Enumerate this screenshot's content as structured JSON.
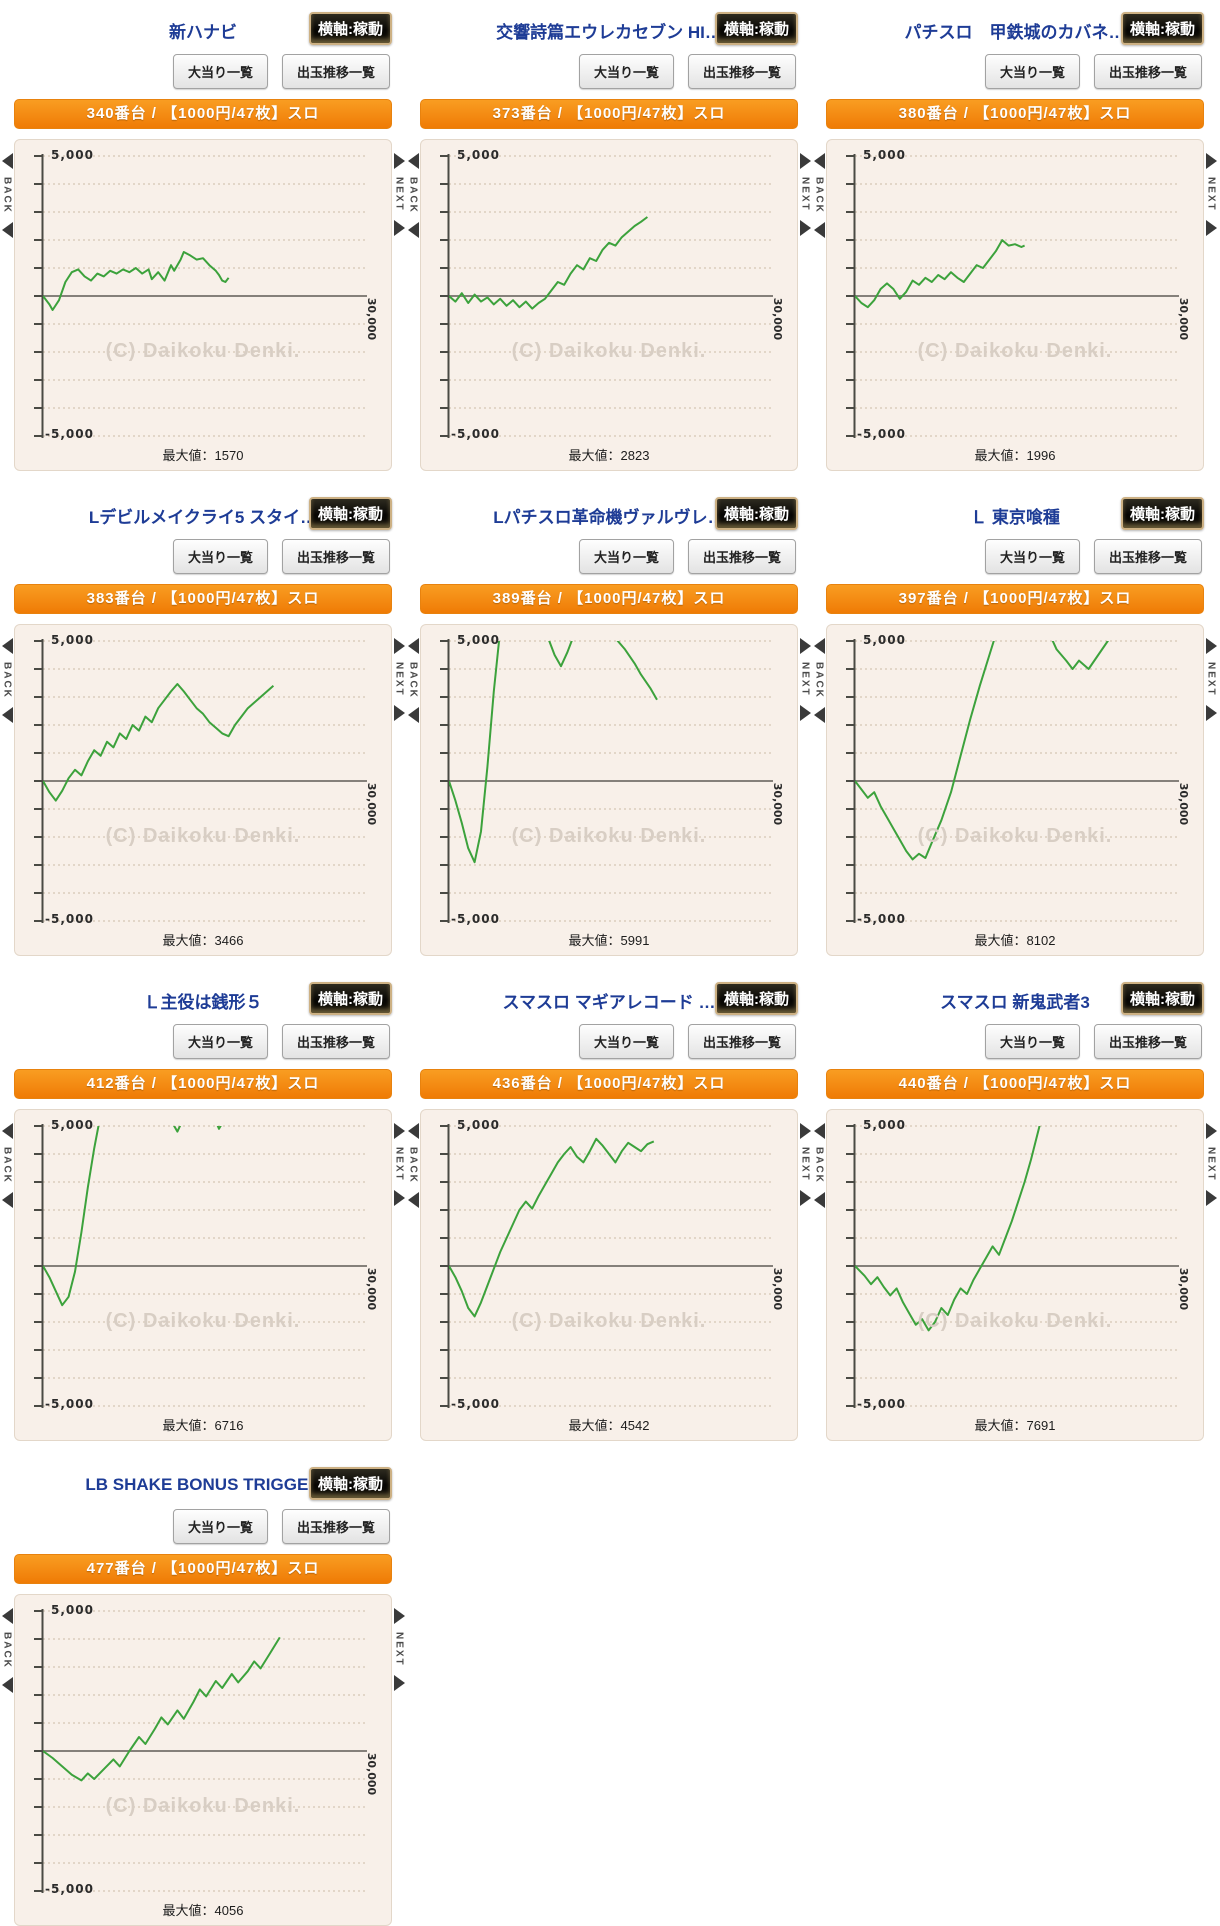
{
  "common": {
    "haxis_mode_label": "横軸:稼動",
    "jackpot_list_label": "大当り一覧",
    "payout_list_label": "出玉推移一覧",
    "back_label": "BACK",
    "next_label": "NEXT",
    "watermark": "(C) Daikoku Denki.",
    "max_value_prefix": "最大値：",
    "y_axis_top_label": "5,000",
    "y_axis_bottom_label": "-5,000",
    "x_axis_end_label": "30,000"
  },
  "colors": {
    "title_blue": "#1e3c96",
    "orange_bar": "#f68a10",
    "card_background": "#f8f0e9",
    "grid_line": "#cdbba8",
    "zero_line": "#85807a",
    "axis_line": "#4a4a44",
    "series_green": "#3ca23c",
    "watermark_gray": "#d8cec4",
    "haxis_border_gold": "#cdb184"
  },
  "chart_data": [
    {
      "type": "line",
      "title": "新ハナビ",
      "machine_label": "340番台 / 【1000円/47枚】スロ",
      "max_value": "1570",
      "ylim": [
        -5000,
        5000
      ],
      "grid_step": 1000,
      "x_end": 30000,
      "points": [
        [
          0,
          0
        ],
        [
          0.02,
          -300
        ],
        [
          0.03,
          -500
        ],
        [
          0.05,
          -150
        ],
        [
          0.07,
          500
        ],
        [
          0.09,
          850
        ],
        [
          0.11,
          950
        ],
        [
          0.13,
          700
        ],
        [
          0.15,
          550
        ],
        [
          0.17,
          800
        ],
        [
          0.19,
          700
        ],
        [
          0.21,
          900
        ],
        [
          0.23,
          800
        ],
        [
          0.25,
          950
        ],
        [
          0.27,
          850
        ],
        [
          0.29,
          1000
        ],
        [
          0.31,
          800
        ],
        [
          0.33,
          950
        ],
        [
          0.34,
          600
        ],
        [
          0.36,
          850
        ],
        [
          0.38,
          550
        ],
        [
          0.4,
          1100
        ],
        [
          0.41,
          900
        ],
        [
          0.43,
          1300
        ],
        [
          0.44,
          1570
        ],
        [
          0.46,
          1450
        ],
        [
          0.48,
          1300
        ],
        [
          0.5,
          1350
        ],
        [
          0.52,
          1100
        ],
        [
          0.54,
          900
        ],
        [
          0.55,
          750
        ],
        [
          0.56,
          550
        ],
        [
          0.57,
          500
        ],
        [
          0.58,
          650
        ]
      ]
    },
    {
      "type": "line",
      "title": "交響詩篇エウレカセブン HI…",
      "machine_label": "373番台 / 【1000円/47枚】スロ",
      "max_value": "2823",
      "ylim": [
        -5000,
        5000
      ],
      "grid_step": 1000,
      "x_end": 30000,
      "points": [
        [
          0,
          0
        ],
        [
          0.02,
          -200
        ],
        [
          0.04,
          100
        ],
        [
          0.06,
          -250
        ],
        [
          0.08,
          50
        ],
        [
          0.1,
          -200
        ],
        [
          0.12,
          -50
        ],
        [
          0.14,
          -300
        ],
        [
          0.16,
          -100
        ],
        [
          0.18,
          -350
        ],
        [
          0.2,
          -150
        ],
        [
          0.22,
          -400
        ],
        [
          0.24,
          -200
        ],
        [
          0.26,
          -450
        ],
        [
          0.28,
          -250
        ],
        [
          0.3,
          -100
        ],
        [
          0.32,
          200
        ],
        [
          0.34,
          500
        ],
        [
          0.36,
          400
        ],
        [
          0.38,
          800
        ],
        [
          0.4,
          1100
        ],
        [
          0.42,
          950
        ],
        [
          0.44,
          1350
        ],
        [
          0.46,
          1250
        ],
        [
          0.48,
          1650
        ],
        [
          0.5,
          1900
        ],
        [
          0.52,
          1800
        ],
        [
          0.54,
          2100
        ],
        [
          0.56,
          2300
        ],
        [
          0.58,
          2500
        ],
        [
          0.6,
          2650
        ],
        [
          0.62,
          2823
        ]
      ]
    },
    {
      "type": "line",
      "title": "パチスロ　甲鉄城のカバネ…",
      "machine_label": "380番台 / 【1000円/47枚】スロ",
      "max_value": "1996",
      "ylim": [
        -5000,
        5000
      ],
      "grid_step": 1000,
      "x_end": 30000,
      "points": [
        [
          0,
          0
        ],
        [
          0.02,
          -250
        ],
        [
          0.04,
          -400
        ],
        [
          0.06,
          -150
        ],
        [
          0.08,
          250
        ],
        [
          0.1,
          450
        ],
        [
          0.12,
          250
        ],
        [
          0.14,
          -100
        ],
        [
          0.16,
          150
        ],
        [
          0.18,
          550
        ],
        [
          0.2,
          400
        ],
        [
          0.22,
          650
        ],
        [
          0.24,
          500
        ],
        [
          0.26,
          750
        ],
        [
          0.28,
          600
        ],
        [
          0.3,
          850
        ],
        [
          0.32,
          650
        ],
        [
          0.34,
          500
        ],
        [
          0.36,
          800
        ],
        [
          0.38,
          1100
        ],
        [
          0.4,
          1000
        ],
        [
          0.42,
          1300
        ],
        [
          0.44,
          1600
        ],
        [
          0.46,
          1996
        ],
        [
          0.48,
          1800
        ],
        [
          0.5,
          1850
        ],
        [
          0.52,
          1750
        ],
        [
          0.53,
          1800
        ]
      ]
    },
    {
      "type": "line",
      "title": "Lデビルメイクライ5 スタイ…",
      "machine_label": "383番台 / 【1000円/47枚】スロ",
      "max_value": "3466",
      "ylim": [
        -5000,
        5000
      ],
      "grid_step": 1000,
      "x_end": 30000,
      "points": [
        [
          0,
          0
        ],
        [
          0.02,
          -400
        ],
        [
          0.04,
          -700
        ],
        [
          0.06,
          -350
        ],
        [
          0.08,
          100
        ],
        [
          0.1,
          400
        ],
        [
          0.12,
          200
        ],
        [
          0.14,
          700
        ],
        [
          0.16,
          1100
        ],
        [
          0.18,
          900
        ],
        [
          0.2,
          1400
        ],
        [
          0.22,
          1200
        ],
        [
          0.24,
          1700
        ],
        [
          0.26,
          1500
        ],
        [
          0.28,
          2000
        ],
        [
          0.3,
          1800
        ],
        [
          0.32,
          2300
        ],
        [
          0.34,
          2100
        ],
        [
          0.36,
          2600
        ],
        [
          0.38,
          2900
        ],
        [
          0.4,
          3200
        ],
        [
          0.42,
          3466
        ],
        [
          0.44,
          3200
        ],
        [
          0.46,
          2900
        ],
        [
          0.48,
          2600
        ],
        [
          0.5,
          2400
        ],
        [
          0.52,
          2100
        ],
        [
          0.54,
          1900
        ],
        [
          0.56,
          1700
        ],
        [
          0.58,
          1600
        ],
        [
          0.6,
          2000
        ],
        [
          0.62,
          2300
        ],
        [
          0.64,
          2600
        ],
        [
          0.66,
          2800
        ],
        [
          0.68,
          3000
        ],
        [
          0.7,
          3200
        ],
        [
          0.72,
          3400
        ]
      ]
    },
    {
      "type": "line",
      "title": "Lパチスロ革命機ヴァルヴレ…",
      "machine_label": "389番台 / 【1000円/47枚】スロ",
      "max_value": "5991",
      "ylim": [
        -5000,
        5000
      ],
      "grid_step": 1000,
      "x_end": 30000,
      "points": [
        [
          0,
          0
        ],
        [
          0.02,
          -700
        ],
        [
          0.04,
          -1500
        ],
        [
          0.06,
          -2400
        ],
        [
          0.08,
          -2900
        ],
        [
          0.1,
          -1800
        ],
        [
          0.12,
          500
        ],
        [
          0.14,
          3200
        ],
        [
          0.16,
          5400
        ],
        [
          0.2,
          5991
        ],
        [
          0.28,
          5600
        ],
        [
          0.31,
          5100
        ],
        [
          0.33,
          4500
        ],
        [
          0.35,
          4100
        ],
        [
          0.37,
          4600
        ],
        [
          0.39,
          5200
        ],
        [
          0.48,
          5500
        ],
        [
          0.52,
          5100
        ],
        [
          0.55,
          4700
        ],
        [
          0.58,
          4200
        ],
        [
          0.6,
          3800
        ],
        [
          0.63,
          3300
        ],
        [
          0.65,
          2900
        ]
      ]
    },
    {
      "type": "line",
      "title": "Ｌ 東京喰種",
      "machine_label": "397番台 / 【1000円/47枚】スロ",
      "max_value": "8102",
      "ylim": [
        -5000,
        5000
      ],
      "grid_step": 1000,
      "x_end": 30000,
      "points": [
        [
          0,
          0
        ],
        [
          0.02,
          -300
        ],
        [
          0.04,
          -600
        ],
        [
          0.06,
          -400
        ],
        [
          0.08,
          -900
        ],
        [
          0.1,
          -1300
        ],
        [
          0.12,
          -1700
        ],
        [
          0.14,
          -2100
        ],
        [
          0.16,
          -2500
        ],
        [
          0.18,
          -2800
        ],
        [
          0.2,
          -2600
        ],
        [
          0.22,
          -2750
        ],
        [
          0.24,
          -2200
        ],
        [
          0.27,
          -1400
        ],
        [
          0.3,
          -400
        ],
        [
          0.33,
          900
        ],
        [
          0.36,
          2200
        ],
        [
          0.39,
          3400
        ],
        [
          0.42,
          4500
        ],
        [
          0.45,
          5600
        ],
        [
          0.48,
          7000
        ],
        [
          0.51,
          8102
        ],
        [
          0.55,
          7000
        ],
        [
          0.58,
          6000
        ],
        [
          0.61,
          5200
        ],
        [
          0.63,
          4700
        ],
        [
          0.66,
          4300
        ],
        [
          0.68,
          4000
        ],
        [
          0.7,
          4300
        ],
        [
          0.73,
          4000
        ],
        [
          0.76,
          4500
        ],
        [
          0.79,
          5000
        ],
        [
          0.82,
          5700
        ]
      ]
    },
    {
      "type": "line",
      "title": "Ｌ主役は銭形５",
      "machine_label": "412番台 / 【1000円/47枚】スロ",
      "max_value": "6716",
      "ylim": [
        -5000,
        5000
      ],
      "grid_step": 1000,
      "x_end": 30000,
      "points": [
        [
          0,
          0
        ],
        [
          0.02,
          -400
        ],
        [
          0.04,
          -900
        ],
        [
          0.06,
          -1400
        ],
        [
          0.08,
          -1100
        ],
        [
          0.1,
          -200
        ],
        [
          0.12,
          1200
        ],
        [
          0.14,
          2800
        ],
        [
          0.16,
          4200
        ],
        [
          0.18,
          5400
        ],
        [
          0.21,
          6300
        ],
        [
          0.25,
          6716
        ],
        [
          0.33,
          6300
        ],
        [
          0.37,
          5800
        ],
        [
          0.4,
          5200
        ],
        [
          0.42,
          4800
        ],
        [
          0.44,
          5300
        ],
        [
          0.47,
          6000
        ],
        [
          0.52,
          5700
        ],
        [
          0.55,
          4900
        ],
        [
          0.57,
          5300
        ],
        [
          0.6,
          5900
        ]
      ]
    },
    {
      "type": "line",
      "title": "スマスロ マギアレコード …",
      "machine_label": "436番台 / 【1000円/47枚】スロ",
      "max_value": "4542",
      "ylim": [
        -5000,
        5000
      ],
      "grid_step": 1000,
      "x_end": 30000,
      "points": [
        [
          0,
          0
        ],
        [
          0.02,
          -400
        ],
        [
          0.04,
          -900
        ],
        [
          0.06,
          -1500
        ],
        [
          0.08,
          -1800
        ],
        [
          0.1,
          -1300
        ],
        [
          0.12,
          -700
        ],
        [
          0.14,
          -100
        ],
        [
          0.16,
          500
        ],
        [
          0.18,
          1000
        ],
        [
          0.2,
          1500
        ],
        [
          0.22,
          2000
        ],
        [
          0.24,
          2300
        ],
        [
          0.26,
          2050
        ],
        [
          0.28,
          2500
        ],
        [
          0.3,
          2900
        ],
        [
          0.32,
          3300
        ],
        [
          0.34,
          3700
        ],
        [
          0.36,
          4000
        ],
        [
          0.38,
          4250
        ],
        [
          0.4,
          3900
        ],
        [
          0.42,
          3700
        ],
        [
          0.44,
          4100
        ],
        [
          0.46,
          4542
        ],
        [
          0.48,
          4300
        ],
        [
          0.5,
          4000
        ],
        [
          0.52,
          3700
        ],
        [
          0.54,
          4100
        ],
        [
          0.56,
          4400
        ],
        [
          0.58,
          4250
        ],
        [
          0.6,
          4100
        ],
        [
          0.62,
          4350
        ],
        [
          0.64,
          4450
        ]
      ]
    },
    {
      "type": "line",
      "title": "スマスロ 新鬼武者3",
      "machine_label": "440番台 / 【1000円/47枚】スロ",
      "max_value": "7691",
      "ylim": [
        -5000,
        5000
      ],
      "grid_step": 1000,
      "x_end": 30000,
      "points": [
        [
          0,
          0
        ],
        [
          0.03,
          -350
        ],
        [
          0.05,
          -650
        ],
        [
          0.07,
          -400
        ],
        [
          0.09,
          -750
        ],
        [
          0.11,
          -1050
        ],
        [
          0.13,
          -800
        ],
        [
          0.15,
          -1300
        ],
        [
          0.17,
          -1700
        ],
        [
          0.19,
          -2100
        ],
        [
          0.21,
          -1900
        ],
        [
          0.23,
          -2300
        ],
        [
          0.25,
          -2000
        ],
        [
          0.27,
          -1500
        ],
        [
          0.29,
          -1750
        ],
        [
          0.31,
          -1200
        ],
        [
          0.33,
          -800
        ],
        [
          0.35,
          -1000
        ],
        [
          0.37,
          -500
        ],
        [
          0.39,
          -100
        ],
        [
          0.41,
          300
        ],
        [
          0.43,
          700
        ],
        [
          0.45,
          400
        ],
        [
          0.47,
          1000
        ],
        [
          0.49,
          1600
        ],
        [
          0.51,
          2300
        ],
        [
          0.53,
          3000
        ],
        [
          0.55,
          3800
        ],
        [
          0.57,
          4700
        ],
        [
          0.59,
          5600
        ],
        [
          0.61,
          6600
        ],
        [
          0.63,
          7691
        ]
      ]
    },
    {
      "type": "line",
      "title": "LB SHAKE BONUS TRIGGER",
      "machine_label": "477番台 / 【1000円/47枚】スロ",
      "max_value": "4056",
      "ylim": [
        -5000,
        5000
      ],
      "grid_step": 1000,
      "x_end": 30000,
      "points": [
        [
          0,
          0
        ],
        [
          0.03,
          -250
        ],
        [
          0.06,
          -550
        ],
        [
          0.09,
          -850
        ],
        [
          0.12,
          -1050
        ],
        [
          0.14,
          -800
        ],
        [
          0.16,
          -1000
        ],
        [
          0.19,
          -650
        ],
        [
          0.22,
          -300
        ],
        [
          0.24,
          -550
        ],
        [
          0.27,
          0
        ],
        [
          0.3,
          500
        ],
        [
          0.32,
          250
        ],
        [
          0.35,
          800
        ],
        [
          0.37,
          1200
        ],
        [
          0.39,
          950
        ],
        [
          0.42,
          1450
        ],
        [
          0.44,
          1150
        ],
        [
          0.47,
          1750
        ],
        [
          0.49,
          2200
        ],
        [
          0.51,
          1950
        ],
        [
          0.54,
          2500
        ],
        [
          0.56,
          2250
        ],
        [
          0.59,
          2750
        ],
        [
          0.61,
          2450
        ],
        [
          0.64,
          2850
        ],
        [
          0.66,
          3200
        ],
        [
          0.68,
          2950
        ],
        [
          0.71,
          3500
        ],
        [
          0.74,
          4056
        ]
      ]
    }
  ]
}
